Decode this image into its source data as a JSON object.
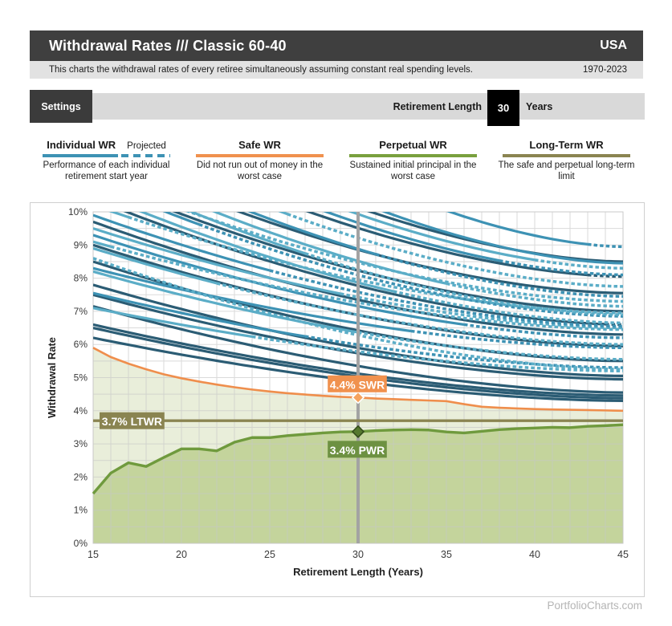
{
  "header": {
    "title": "Withdrawal Rates /// Classic 60-40",
    "region": "USA",
    "subtitle": "This charts the withdrawal rates of every retiree simultaneously assuming constant real spending levels.",
    "period": "1970-2023"
  },
  "settings_bar": {
    "settings_label": "Settings",
    "retirement_length_label": "Retirement Length",
    "retirement_length_value": "30",
    "retirement_length_unit": "Years"
  },
  "legend": {
    "items": [
      {
        "label": "Individual WR",
        "sublabel": "Projected",
        "description": "Performance of each individual retirement start year",
        "color": "#3d92b4",
        "line_style": "solid+dashed"
      },
      {
        "label": "Safe WR",
        "description": "Did not run out of money in the worst case",
        "color": "#f0914e",
        "line_style": "solid"
      },
      {
        "label": "Perpetual WR",
        "description": "Sustained initial principal in the worst case",
        "color": "#79a03e",
        "line_style": "solid"
      },
      {
        "label": "Long-Term WR",
        "description": "The safe and perpetual long-term limit",
        "color": "#8a8451",
        "line_style": "solid"
      }
    ]
  },
  "footer": {
    "brand": "PortfolioCharts.com"
  },
  "colors": {
    "header_bg": "#3f3f3f",
    "subtitle_bg": "#e2e2e2",
    "settings_track": "#d9d9d9",
    "grid": "#c7c7c7",
    "axis_text": "#3a3a3a",
    "fill_safe": "#e9eeda",
    "fill_perpetual": "#c4d49c",
    "highlight_line": "#a3a3a3",
    "brand_text": "#b5b5b5"
  },
  "chart_data": {
    "type": "line",
    "xlabel": "Retirement Length (Years)",
    "ylabel": "Withdrawal Rate",
    "xlim": [
      15,
      45
    ],
    "ylim": [
      0,
      10
    ],
    "x_ticks": [
      15,
      20,
      25,
      30,
      35,
      40,
      45
    ],
    "y_ticks": [
      "0%",
      "1%",
      "2%",
      "3%",
      "4%",
      "5%",
      "6%",
      "7%",
      "8%",
      "9%",
      "10%"
    ],
    "grid_steps": {
      "x_minor": 1,
      "y_minor": 0.5
    },
    "highlight_x": 30,
    "series": [
      {
        "name": "Safe WR",
        "color": "#ef8e4c",
        "fill": "#e9eeda",
        "x_start": 15,
        "values": [
          5.9,
          5.62,
          5.42,
          5.25,
          5.1,
          4.98,
          4.88,
          4.79,
          4.71,
          4.64,
          4.58,
          4.53,
          4.49,
          4.45,
          4.42,
          4.4,
          4.37,
          4.35,
          4.33,
          4.31,
          4.29,
          4.2,
          4.12,
          4.09,
          4.07,
          4.05,
          4.04,
          4.03,
          4.02,
          4.01,
          4.0
        ]
      },
      {
        "name": "Perpetual WR",
        "color": "#6f9a3d",
        "fill": "#c4d49c",
        "x_start": 15,
        "values": [
          1.5,
          2.12,
          2.43,
          2.32,
          2.59,
          2.85,
          2.85,
          2.79,
          3.05,
          3.19,
          3.19,
          3.25,
          3.29,
          3.33,
          3.36,
          3.37,
          3.4,
          3.42,
          3.43,
          3.42,
          3.36,
          3.33,
          3.38,
          3.43,
          3.46,
          3.48,
          3.5,
          3.49,
          3.53,
          3.55,
          3.58
        ]
      },
      {
        "name": "Long-Term WR",
        "color": "#8a8451",
        "constant": 3.7
      }
    ],
    "badges": [
      {
        "label": "4.4% SWR",
        "x": 30,
        "y": 4.4,
        "color": "#f0914e",
        "anchor": "above",
        "diamond_fill": "#f5a35f",
        "diamond_stroke": "#ffffff"
      },
      {
        "label": "3.4% PWR",
        "x": 30,
        "y": 3.37,
        "color": "#6d9142",
        "anchor": "below",
        "diamond_fill": "#55782e",
        "diamond_stroke": "#344c1b"
      },
      {
        "label": "3.7% LTWR",
        "y": 3.7,
        "color": "#8a8451",
        "anchor": "left"
      }
    ],
    "individual_curves": {
      "note": "approximate traces of each retirement start year 1970-2023",
      "format": "[value_at_15yr, value_at_45yr, color_index, dotted_from_year(0=fully solid)]",
      "palette": [
        "#2b5c74",
        "#3d92b4",
        "#5badc7"
      ],
      "shape_exponent": 1.7,
      "list": [
        [
          6.2,
          4.3,
          0,
          0
        ],
        [
          6.5,
          4.38,
          0,
          0
        ],
        [
          6.6,
          4.46,
          0,
          0
        ],
        [
          7.15,
          4.55,
          0,
          0
        ],
        [
          7.5,
          4.95,
          0,
          0
        ],
        [
          7.8,
          5.05,
          0,
          0
        ],
        [
          8.5,
          5.5,
          0,
          0
        ],
        [
          9.0,
          5.95,
          0,
          0
        ],
        [
          9.7,
          6.3,
          0,
          0
        ],
        [
          10.4,
          6.6,
          0,
          44
        ],
        [
          11.0,
          7.0,
          0,
          0
        ],
        [
          11.8,
          7.55,
          0,
          0
        ],
        [
          12.8,
          8.05,
          0,
          43
        ],
        [
          13.8,
          8.5,
          0,
          0
        ],
        [
          7.1,
          5.2,
          2,
          24
        ],
        [
          7.55,
          5.3,
          1,
          27
        ],
        [
          8.2,
          5.55,
          2,
          30
        ],
        [
          8.3,
          5.9,
          1,
          33
        ],
        [
          8.9,
          6.0,
          2,
          22
        ],
        [
          9.3,
          6.2,
          1,
          36
        ],
        [
          9.5,
          6.5,
          2,
          29
        ],
        [
          9.9,
          6.55,
          1,
          25
        ],
        [
          10.6,
          6.65,
          2,
          32
        ],
        [
          10.9,
          6.85,
          1,
          21
        ],
        [
          11.3,
          6.9,
          2,
          27
        ],
        [
          11.6,
          7.15,
          2,
          35
        ],
        [
          12.1,
          7.45,
          1,
          31
        ],
        [
          12.5,
          7.75,
          2,
          26
        ],
        [
          13.2,
          8.1,
          1,
          38
        ],
        [
          13.6,
          8.3,
          2,
          40
        ],
        [
          14.5,
          8.45,
          1,
          0
        ],
        [
          16.0,
          8.95,
          1,
          43
        ],
        [
          8.6,
          5.25,
          2,
          15
        ],
        [
          9.1,
          6.45,
          2,
          16
        ],
        [
          10.2,
          6.95,
          2,
          17
        ],
        [
          11.1,
          7.3,
          2,
          18
        ]
      ]
    }
  }
}
